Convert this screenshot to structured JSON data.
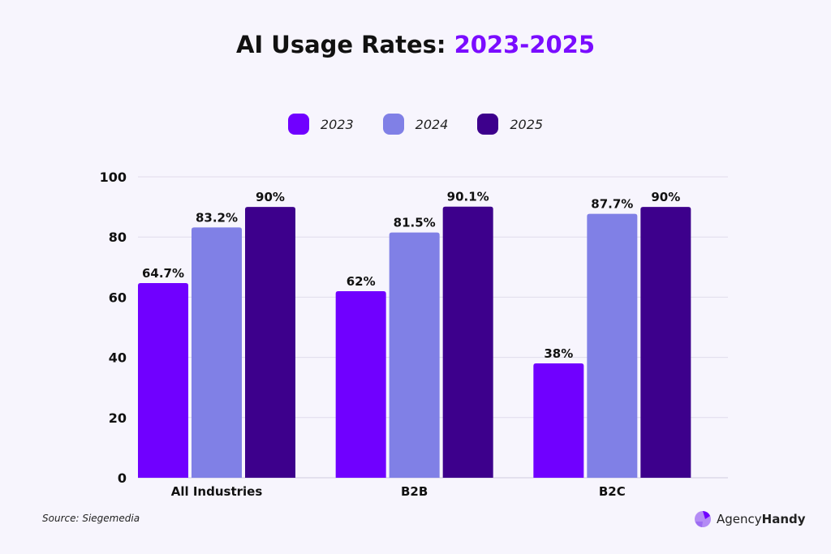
{
  "title": {
    "main": "AI Usage Rates: ",
    "accent": "2023-2025"
  },
  "chart_data": {
    "type": "bar",
    "title": "AI Usage Rates: 2023-2025",
    "categories": [
      "All Industries",
      "B2B",
      "B2C"
    ],
    "series": [
      {
        "name": "2023",
        "color": "#7000ff",
        "values": [
          64.7,
          62,
          38
        ],
        "labels": [
          "64.7%",
          "62%",
          "38%"
        ]
      },
      {
        "name": "2024",
        "color": "#8080e6",
        "values": [
          83.2,
          81.5,
          87.7
        ],
        "labels": [
          "83.2%",
          "81.5%",
          "87.7%"
        ]
      },
      {
        "name": "2025",
        "color": "#3d008c",
        "values": [
          90,
          90.1,
          90
        ],
        "labels": [
          "90%",
          "90.1%",
          "90%"
        ]
      }
    ],
    "yticks": [
      0,
      20,
      40,
      60,
      80,
      100
    ],
    "ylim": [
      0,
      100
    ],
    "grid": true,
    "legend": "top-center"
  },
  "source": "Source: Siegemedia",
  "brand": {
    "name_light": "Agency",
    "name_bold": "Handy"
  }
}
